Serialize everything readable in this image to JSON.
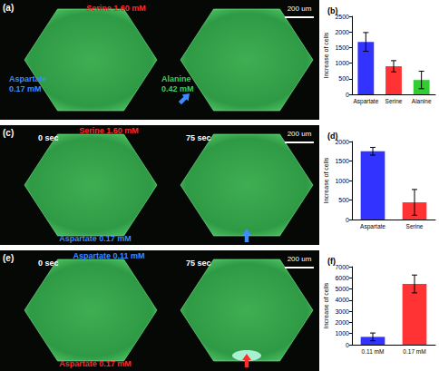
{
  "chart_data": [
    {
      "type": "bar",
      "title": "(b)",
      "ylabel": "Increase of cells",
      "categories": [
        "Aspartate",
        "Serine",
        "Alanine"
      ],
      "values": [
        1680,
        900,
        460
      ],
      "errors": [
        300,
        180,
        280
      ],
      "colors": [
        "#3333ff",
        "#ff3333",
        "#33cc33"
      ],
      "ylim": [
        0,
        2500
      ],
      "yticks": [
        0,
        500,
        1000,
        1500,
        2000,
        2500
      ],
      "grid": false
    },
    {
      "type": "bar",
      "title": "(d)",
      "ylabel": "Increase of cells",
      "categories": [
        "Aspartate",
        "Serine"
      ],
      "values": [
        1750,
        440
      ],
      "errors": [
        100,
        330
      ],
      "colors": [
        "#3333ff",
        "#ff3333"
      ],
      "ylim": [
        0,
        2000
      ],
      "yticks": [
        0,
        500,
        1000,
        1500,
        2000
      ],
      "grid": false
    },
    {
      "type": "bar",
      "title": "(f)",
      "ylabel": "Increase of cells",
      "categories": [
        "0.11 mM",
        "0.17 mM"
      ],
      "values": [
        700,
        5450
      ],
      "errors": [
        350,
        800
      ],
      "colors": [
        "#3333ff",
        "#ff3333"
      ],
      "ylim": [
        0,
        7000
      ],
      "yticks": [
        0,
        1000,
        2000,
        3000,
        4000,
        5000,
        6000,
        7000
      ],
      "grid": false
    }
  ],
  "image_panels": [
    {
      "label": "(a)",
      "scale_bar": "200 um",
      "texts": [
        {
          "lines": [
            "Serine 1.60 mM"
          ],
          "color": "#ff2a2a"
        },
        {
          "lines": [
            "Aspartate",
            "0.17 mM"
          ],
          "color": "#3d8bff"
        },
        {
          "lines": [
            "Alanine",
            "0.42 mM"
          ],
          "color": "#3ccf5a"
        }
      ],
      "arrow": {
        "color": "#3d8bff"
      }
    },
    {
      "label": "(c)",
      "scale_bar": "200 um",
      "texts": [
        {
          "lines": [
            "Serine 1.60 mM"
          ],
          "color": "#ff2a2a"
        },
        {
          "lines": [
            "Aspartate 0.17 mM"
          ],
          "color": "#3d8bff"
        },
        {
          "lines": [
            "0 sec"
          ],
          "color": "#ffffff"
        },
        {
          "lines": [
            "75 sec"
          ],
          "color": "#ffffff"
        }
      ],
      "arrow": {
        "color": "#3d8bff"
      }
    },
    {
      "label": "(e)",
      "scale_bar": "200 um",
      "texts": [
        {
          "lines": [
            "Aspartate 0.11 mM"
          ],
          "color": "#3d8bff"
        },
        {
          "lines": [
            "Aspartate 0.17 mM"
          ],
          "color": "#ff2a2a"
        },
        {
          "lines": [
            "0 sec"
          ],
          "color": "#ffffff"
        },
        {
          "lines": [
            "75 sec"
          ],
          "color": "#ffffff"
        }
      ],
      "arrow": {
        "color": "#ff2a2a"
      }
    }
  ]
}
